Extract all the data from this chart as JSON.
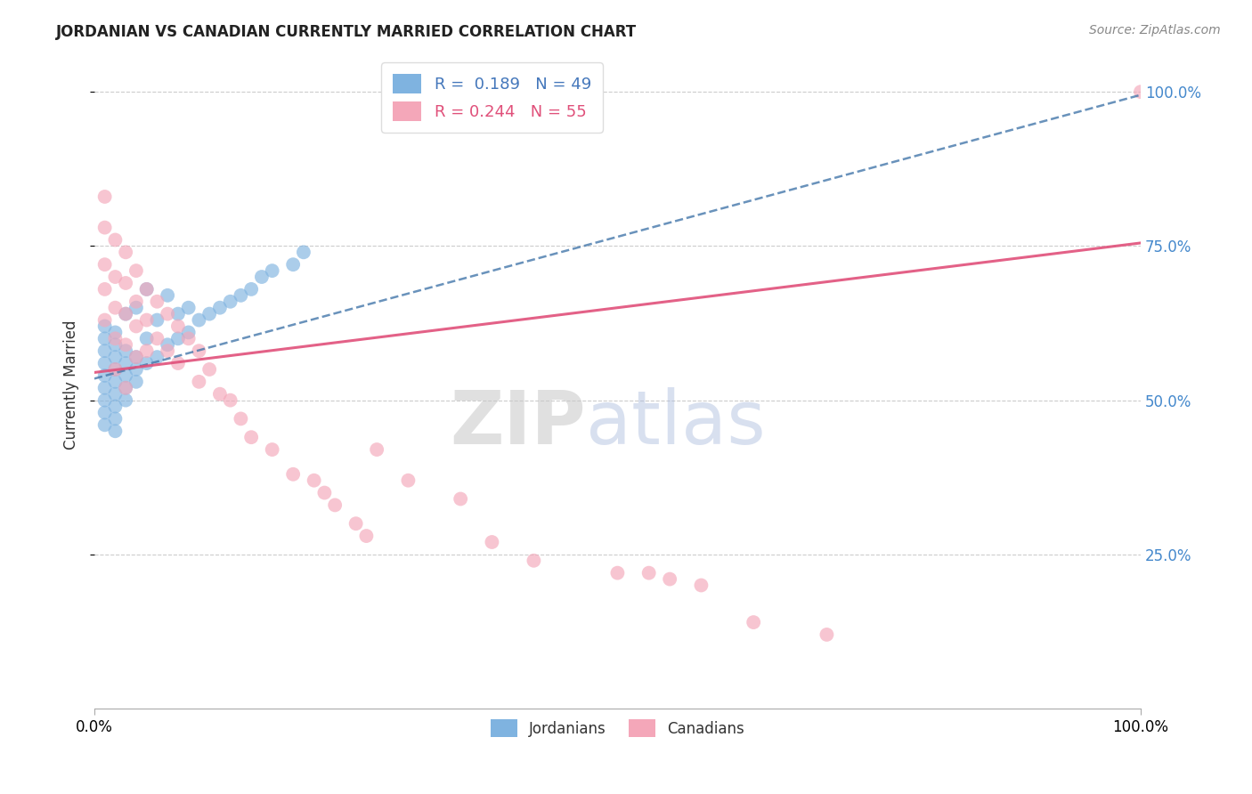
{
  "title": "JORDANIAN VS CANADIAN CURRENTLY MARRIED CORRELATION CHART",
  "source_text": "Source: ZipAtlas.com",
  "ylabel": "Currently Married",
  "ytick_labels": [
    "25.0%",
    "50.0%",
    "75.0%",
    "100.0%"
  ],
  "ytick_values": [
    0.25,
    0.5,
    0.75,
    1.0
  ],
  "jordanians": {
    "x": [
      0.01,
      0.01,
      0.01,
      0.01,
      0.01,
      0.01,
      0.01,
      0.01,
      0.01,
      0.02,
      0.02,
      0.02,
      0.02,
      0.02,
      0.02,
      0.02,
      0.02,
      0.02,
      0.03,
      0.03,
      0.03,
      0.03,
      0.03,
      0.03,
      0.04,
      0.04,
      0.04,
      0.04,
      0.05,
      0.05,
      0.05,
      0.06,
      0.06,
      0.07,
      0.07,
      0.08,
      0.08,
      0.09,
      0.09,
      0.1,
      0.11,
      0.12,
      0.13,
      0.14,
      0.15,
      0.16,
      0.17,
      0.19,
      0.2
    ],
    "y": [
      0.56,
      0.54,
      0.52,
      0.5,
      0.48,
      0.46,
      0.58,
      0.6,
      0.62,
      0.53,
      0.55,
      0.57,
      0.51,
      0.49,
      0.47,
      0.59,
      0.61,
      0.45,
      0.54,
      0.56,
      0.58,
      0.52,
      0.5,
      0.64,
      0.55,
      0.57,
      0.53,
      0.65,
      0.56,
      0.6,
      0.68,
      0.57,
      0.63,
      0.59,
      0.67,
      0.6,
      0.64,
      0.61,
      0.65,
      0.63,
      0.64,
      0.65,
      0.66,
      0.67,
      0.68,
      0.7,
      0.71,
      0.72,
      0.74
    ],
    "color": "#7fb3e0",
    "trend_color": "#4477aa",
    "trend_start_x": 0.0,
    "trend_start_y": 0.535,
    "trend_end_x": 1.0,
    "trend_end_y": 0.995
  },
  "canadians": {
    "x": [
      0.01,
      0.01,
      0.01,
      0.01,
      0.01,
      0.02,
      0.02,
      0.02,
      0.02,
      0.02,
      0.03,
      0.03,
      0.03,
      0.03,
      0.03,
      0.04,
      0.04,
      0.04,
      0.04,
      0.05,
      0.05,
      0.05,
      0.06,
      0.06,
      0.07,
      0.07,
      0.08,
      0.08,
      0.09,
      0.1,
      0.1,
      0.11,
      0.12,
      0.13,
      0.14,
      0.15,
      0.17,
      0.19,
      0.21,
      0.22,
      0.23,
      0.25,
      0.26,
      0.27,
      0.3,
      0.35,
      0.38,
      0.42,
      0.5,
      0.53,
      0.55,
      0.58,
      0.63,
      0.7,
      1.0
    ],
    "y": [
      0.83,
      0.78,
      0.72,
      0.68,
      0.63,
      0.76,
      0.7,
      0.65,
      0.6,
      0.55,
      0.74,
      0.69,
      0.64,
      0.59,
      0.52,
      0.71,
      0.66,
      0.62,
      0.57,
      0.68,
      0.63,
      0.58,
      0.66,
      0.6,
      0.64,
      0.58,
      0.62,
      0.56,
      0.6,
      0.58,
      0.53,
      0.55,
      0.51,
      0.5,
      0.47,
      0.44,
      0.42,
      0.38,
      0.37,
      0.35,
      0.33,
      0.3,
      0.28,
      0.42,
      0.37,
      0.34,
      0.27,
      0.24,
      0.22,
      0.22,
      0.21,
      0.2,
      0.14,
      0.12,
      1.0
    ],
    "color": "#f4a7b9",
    "trend_color": "#e0507a",
    "trend_start_x": 0.0,
    "trend_start_y": 0.545,
    "trend_end_x": 1.0,
    "trend_end_y": 0.755
  },
  "bg_color": "#ffffff",
  "watermark_zip": "ZIP",
  "watermark_atlas": "atlas",
  "xlim": [
    0.0,
    1.0
  ],
  "ylim": [
    0.0,
    1.05
  ]
}
